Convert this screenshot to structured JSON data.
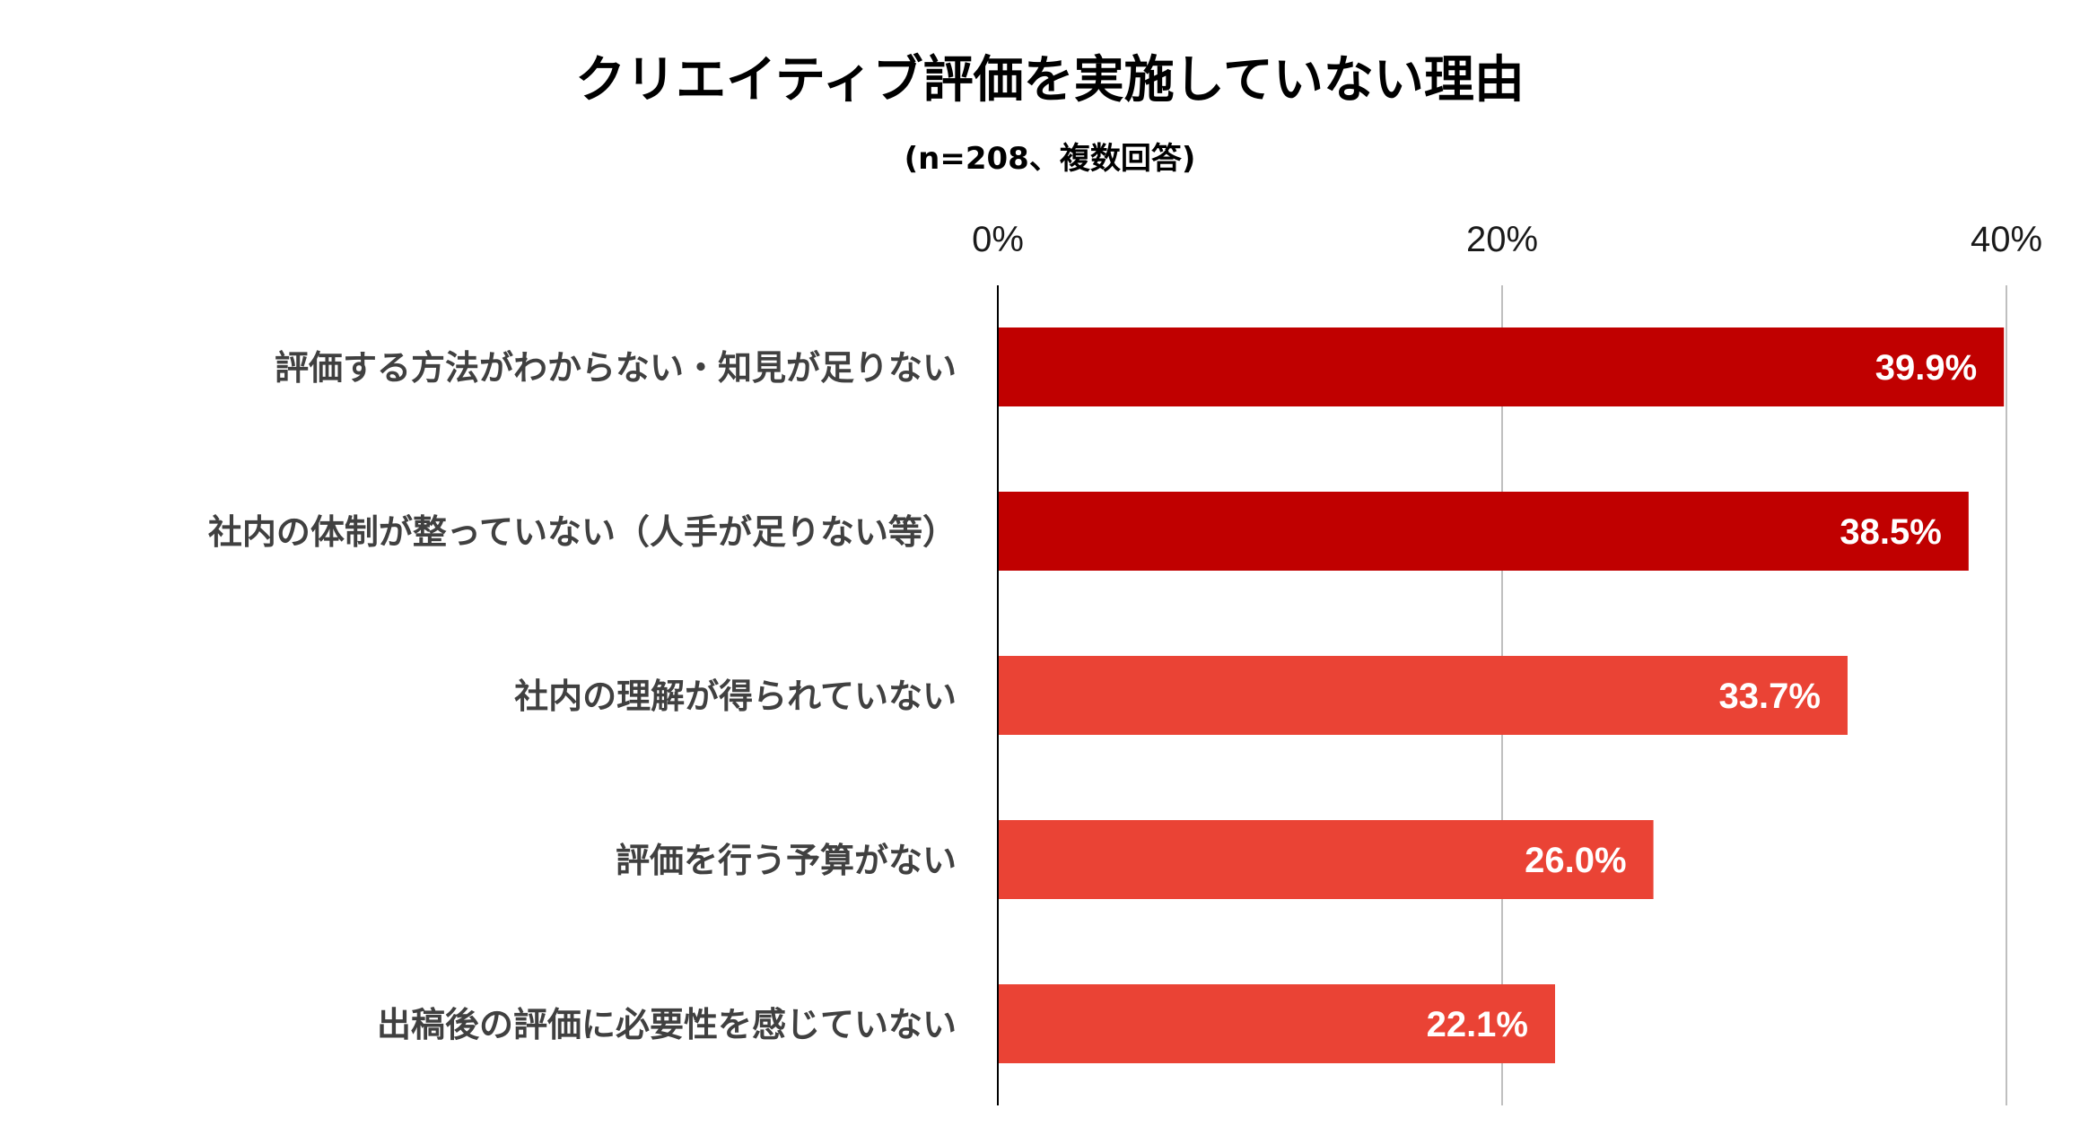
{
  "chart_data": {
    "type": "bar",
    "orientation": "horizontal",
    "title": "クリエイティブ評価を実施していない理由",
    "subtitle": "(n=208、複数回答)",
    "categories": [
      "評価する方法がわからない・知見が足りない",
      "社内の体制が整っていない（人手が足りない等）",
      "社内の理解が得られていない",
      "評価を行う予算がない",
      "出稿後の評価に必要性を感じていない"
    ],
    "values": [
      39.9,
      38.5,
      33.7,
      26.0,
      22.1
    ],
    "data_labels": [
      "39.9%",
      "38.5%",
      "33.7%",
      "26.0%",
      "22.1%"
    ],
    "bar_colors": [
      "#c00000",
      "#c00000",
      "#ea4335",
      "#ea4335",
      "#ea4335"
    ],
    "xlim": [
      0,
      40
    ],
    "x_ticks": [
      0,
      20,
      40
    ],
    "x_tick_labels": [
      "0%",
      "20%",
      "40%"
    ],
    "x_axis_position": "top",
    "grid": true,
    "xlabel": "",
    "ylabel": ""
  }
}
